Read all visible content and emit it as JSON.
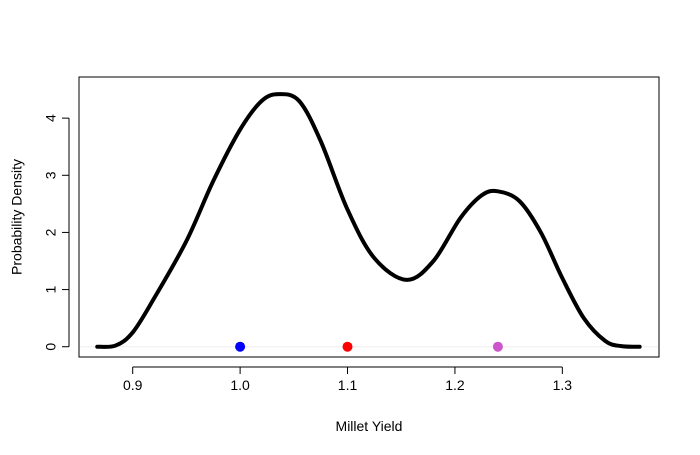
{
  "chart_data": {
    "type": "line",
    "title": "",
    "xlabel": "Millet Yield",
    "ylabel": "Probability Density",
    "xlim": [
      0.85,
      1.39
    ],
    "ylim": [
      -0.18,
      4.72
    ],
    "x_ticks": [
      "0.9",
      "1.0",
      "1.1",
      "1.2",
      "1.3"
    ],
    "y_ticks": [
      "0",
      "1",
      "2",
      "3",
      "4"
    ],
    "grid": false,
    "legend": "none",
    "series": [
      {
        "color": "#000000",
        "x": [
          0.867,
          0.884,
          0.9,
          0.92,
          0.95,
          0.975,
          1.0,
          1.02,
          1.036,
          1.055,
          1.075,
          1.1,
          1.125,
          1.155,
          1.18,
          1.205,
          1.225,
          1.24,
          1.26,
          1.28,
          1.3,
          1.32,
          1.34,
          1.355,
          1.372
        ],
        "y": [
          0.0,
          0.02,
          0.25,
          0.85,
          1.85,
          2.9,
          3.8,
          4.3,
          4.42,
          4.3,
          3.6,
          2.4,
          1.55,
          1.17,
          1.5,
          2.25,
          2.65,
          2.72,
          2.55,
          2.0,
          1.2,
          0.5,
          0.1,
          0.01,
          0.0
        ]
      }
    ],
    "points": [
      {
        "x": 1.0,
        "y": 0,
        "color": "#0000ff"
      },
      {
        "x": 1.1,
        "y": 0,
        "color": "#ff0000"
      },
      {
        "x": 1.24,
        "y": 0,
        "color": "#cc55cc"
      }
    ],
    "baseline": {
      "y": 0,
      "color": "#eeeeee"
    }
  }
}
